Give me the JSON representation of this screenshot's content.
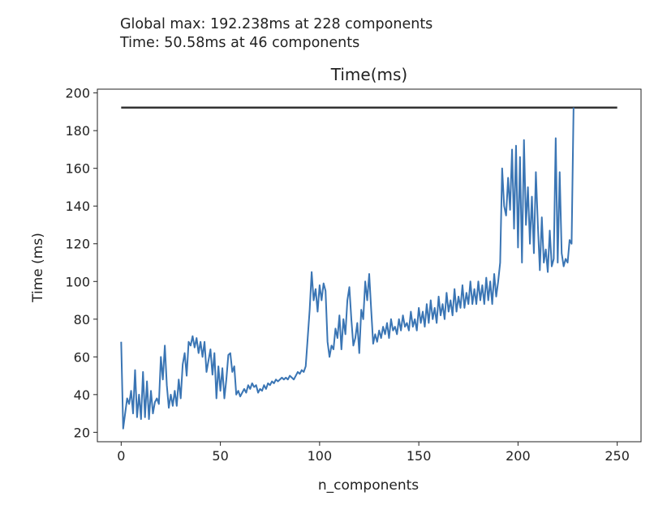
{
  "annotations": {
    "global_max": "Global max: 192.238ms at 228 components",
    "time_point": "Time: 50.58ms at 46 components"
  },
  "chart_data": {
    "type": "line",
    "title": "Time(ms)",
    "xlabel": "n_components",
    "ylabel": "Time (ms)",
    "xlim": [
      -12,
      262
    ],
    "ylim": [
      15,
      202
    ],
    "xticks": [
      0,
      50,
      100,
      150,
      200,
      250
    ],
    "yticks": [
      20,
      40,
      60,
      80,
      100,
      120,
      140,
      160,
      180,
      200
    ],
    "grid": false,
    "colors": {
      "series": "#3a75b4",
      "max_line": "#333333"
    },
    "reference_line": {
      "y": 192.238,
      "x": [
        0,
        250
      ]
    },
    "series": [
      {
        "values": [
          [
            0,
            68
          ],
          [
            1,
            22
          ],
          [
            2,
            30
          ],
          [
            3,
            38
          ],
          [
            4,
            35
          ],
          [
            5,
            42
          ],
          [
            6,
            30
          ],
          [
            7,
            53
          ],
          [
            8,
            28
          ],
          [
            9,
            40
          ],
          [
            10,
            27
          ],
          [
            11,
            52
          ],
          [
            12,
            28
          ],
          [
            13,
            47
          ],
          [
            14,
            27
          ],
          [
            15,
            42
          ],
          [
            16,
            30
          ],
          [
            17,
            36
          ],
          [
            18,
            38
          ],
          [
            19,
            35
          ],
          [
            20,
            60
          ],
          [
            21,
            48
          ],
          [
            22,
            66
          ],
          [
            23,
            45
          ],
          [
            24,
            33
          ],
          [
            25,
            40
          ],
          [
            26,
            34
          ],
          [
            27,
            42
          ],
          [
            28,
            34
          ],
          [
            29,
            48
          ],
          [
            30,
            38
          ],
          [
            31,
            56
          ],
          [
            32,
            62
          ],
          [
            33,
            50
          ],
          [
            34,
            68
          ],
          [
            35,
            66
          ],
          [
            36,
            71
          ],
          [
            37,
            65
          ],
          [
            38,
            70
          ],
          [
            39,
            62
          ],
          [
            40,
            68
          ],
          [
            41,
            60
          ],
          [
            42,
            68
          ],
          [
            43,
            52
          ],
          [
            44,
            58
          ],
          [
            45,
            64
          ],
          [
            46,
            50.58
          ],
          [
            47,
            62
          ],
          [
            48,
            38
          ],
          [
            49,
            55
          ],
          [
            50,
            42
          ],
          [
            51,
            54
          ],
          [
            52,
            38
          ],
          [
            53,
            48
          ],
          [
            54,
            61
          ],
          [
            55,
            62
          ],
          [
            56,
            52
          ],
          [
            57,
            55
          ],
          [
            58,
            40
          ],
          [
            59,
            42
          ],
          [
            60,
            39
          ],
          [
            61,
            41
          ],
          [
            62,
            43
          ],
          [
            63,
            41
          ],
          [
            64,
            45
          ],
          [
            65,
            43
          ],
          [
            66,
            46
          ],
          [
            67,
            44
          ],
          [
            68,
            45
          ],
          [
            69,
            41
          ],
          [
            70,
            43
          ],
          [
            71,
            42
          ],
          [
            72,
            45
          ],
          [
            73,
            43
          ],
          [
            74,
            46
          ],
          [
            75,
            45
          ],
          [
            76,
            47
          ],
          [
            77,
            46
          ],
          [
            78,
            48
          ],
          [
            79,
            47
          ],
          [
            80,
            48
          ],
          [
            81,
            49
          ],
          [
            82,
            48
          ],
          [
            83,
            49
          ],
          [
            84,
            48
          ],
          [
            85,
            50
          ],
          [
            86,
            49
          ],
          [
            87,
            48
          ],
          [
            88,
            50
          ],
          [
            89,
            52
          ],
          [
            90,
            51
          ],
          [
            91,
            53
          ],
          [
            92,
            52
          ],
          [
            93,
            55
          ],
          [
            94,
            70
          ],
          [
            95,
            85
          ],
          [
            96,
            105
          ],
          [
            97,
            90
          ],
          [
            98,
            96
          ],
          [
            99,
            84
          ],
          [
            100,
            98
          ],
          [
            101,
            90
          ],
          [
            102,
            99
          ],
          [
            103,
            95
          ],
          [
            104,
            68
          ],
          [
            105,
            60
          ],
          [
            106,
            66
          ],
          [
            107,
            64
          ],
          [
            108,
            75
          ],
          [
            109,
            70
          ],
          [
            110,
            82
          ],
          [
            111,
            64
          ],
          [
            112,
            80
          ],
          [
            113,
            72
          ],
          [
            114,
            90
          ],
          [
            115,
            97
          ],
          [
            116,
            80
          ],
          [
            117,
            66
          ],
          [
            118,
            70
          ],
          [
            119,
            78
          ],
          [
            120,
            62
          ],
          [
            121,
            85
          ],
          [
            122,
            80
          ],
          [
            123,
            100
          ],
          [
            124,
            90
          ],
          [
            125,
            104
          ],
          [
            126,
            85
          ],
          [
            127,
            67
          ],
          [
            128,
            72
          ],
          [
            129,
            68
          ],
          [
            130,
            74
          ],
          [
            131,
            70
          ],
          [
            132,
            76
          ],
          [
            133,
            72
          ],
          [
            134,
            78
          ],
          [
            135,
            70
          ],
          [
            136,
            80
          ],
          [
            137,
            74
          ],
          [
            138,
            76
          ],
          [
            139,
            72
          ],
          [
            140,
            80
          ],
          [
            141,
            74
          ],
          [
            142,
            82
          ],
          [
            143,
            76
          ],
          [
            144,
            78
          ],
          [
            145,
            74
          ],
          [
            146,
            84
          ],
          [
            147,
            76
          ],
          [
            148,
            80
          ],
          [
            149,
            74
          ],
          [
            150,
            86
          ],
          [
            151,
            78
          ],
          [
            152,
            84
          ],
          [
            153,
            76
          ],
          [
            154,
            88
          ],
          [
            155,
            78
          ],
          [
            156,
            90
          ],
          [
            157,
            80
          ],
          [
            158,
            86
          ],
          [
            159,
            78
          ],
          [
            160,
            92
          ],
          [
            161,
            82
          ],
          [
            162,
            88
          ],
          [
            163,
            80
          ],
          [
            164,
            94
          ],
          [
            165,
            84
          ],
          [
            166,
            90
          ],
          [
            167,
            82
          ],
          [
            168,
            96
          ],
          [
            169,
            84
          ],
          [
            170,
            92
          ],
          [
            171,
            86
          ],
          [
            172,
            98
          ],
          [
            173,
            86
          ],
          [
            174,
            94
          ],
          [
            175,
            88
          ],
          [
            176,
            100
          ],
          [
            177,
            88
          ],
          [
            178,
            96
          ],
          [
            179,
            88
          ],
          [
            180,
            100
          ],
          [
            181,
            90
          ],
          [
            182,
            98
          ],
          [
            183,
            88
          ],
          [
            184,
            102
          ],
          [
            185,
            90
          ],
          [
            186,
            100
          ],
          [
            187,
            88
          ],
          [
            188,
            104
          ],
          [
            189,
            92
          ],
          [
            190,
            100
          ],
          [
            191,
            110
          ],
          [
            192,
            160
          ],
          [
            193,
            140
          ],
          [
            194,
            135
          ],
          [
            195,
            155
          ],
          [
            196,
            138
          ],
          [
            197,
            170
          ],
          [
            198,
            128
          ],
          [
            199,
            172
          ],
          [
            200,
            118
          ],
          [
            201,
            166
          ],
          [
            202,
            110
          ],
          [
            203,
            175
          ],
          [
            204,
            130
          ],
          [
            205,
            150
          ],
          [
            206,
            120
          ],
          [
            207,
            145
          ],
          [
            208,
            115
          ],
          [
            209,
            158
          ],
          [
            210,
            130
          ],
          [
            211,
            106
          ],
          [
            212,
            134
          ],
          [
            213,
            110
          ],
          [
            214,
            117
          ],
          [
            215,
            105
          ],
          [
            216,
            127
          ],
          [
            217,
            108
          ],
          [
            218,
            112
          ],
          [
            219,
            176
          ],
          [
            220,
            110
          ],
          [
            221,
            158
          ],
          [
            222,
            115
          ],
          [
            223,
            108
          ],
          [
            224,
            112
          ],
          [
            225,
            110
          ],
          [
            226,
            122
          ],
          [
            227,
            120
          ],
          [
            228,
            192.238
          ]
        ]
      }
    ]
  }
}
